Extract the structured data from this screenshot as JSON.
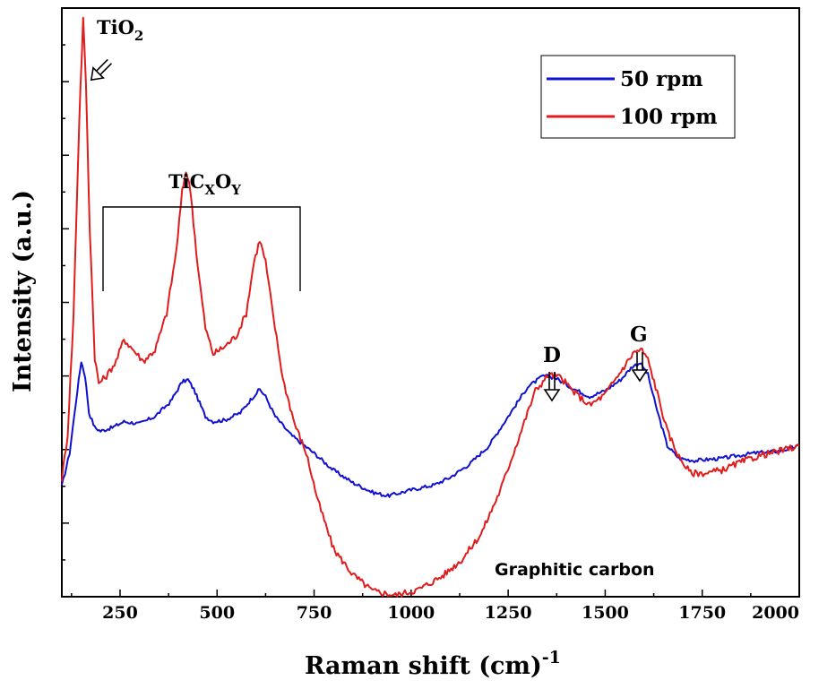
{
  "chart_data": {
    "type": "line",
    "title": "",
    "xlabel": "Raman shift (cm)",
    "xlabel_sup": "-1",
    "ylabel": "Intensity (a.u.)",
    "xlim": [
      100,
      2000
    ],
    "ylim": [
      0,
      8
    ],
    "xticks": [
      250,
      500,
      750,
      1000,
      1250,
      1500,
      1750,
      2000
    ],
    "y_tick_labels_shown": false,
    "grid": false,
    "legend_position": "top-right",
    "series": [
      {
        "name": "50 rpm",
        "color": "#1010d0",
        "points": [
          [
            100,
            1.5
          ],
          [
            120,
            1.95
          ],
          [
            140,
            2.8
          ],
          [
            150,
            3.2
          ],
          [
            160,
            3.0
          ],
          [
            170,
            2.5
          ],
          [
            185,
            2.3
          ],
          [
            200,
            2.25
          ],
          [
            230,
            2.3
          ],
          [
            260,
            2.38
          ],
          [
            300,
            2.35
          ],
          [
            340,
            2.45
          ],
          [
            380,
            2.65
          ],
          [
            410,
            2.92
          ],
          [
            425,
            2.95
          ],
          [
            440,
            2.82
          ],
          [
            470,
            2.45
          ],
          [
            490,
            2.38
          ],
          [
            520,
            2.4
          ],
          [
            560,
            2.5
          ],
          [
            590,
            2.7
          ],
          [
            610,
            2.82
          ],
          [
            625,
            2.72
          ],
          [
            650,
            2.45
          ],
          [
            690,
            2.2
          ],
          [
            750,
            1.95
          ],
          [
            800,
            1.72
          ],
          [
            850,
            1.55
          ],
          [
            900,
            1.42
          ],
          [
            940,
            1.37
          ],
          [
            1000,
            1.45
          ],
          [
            1060,
            1.52
          ],
          [
            1100,
            1.62
          ],
          [
            1150,
            1.8
          ],
          [
            1200,
            2.05
          ],
          [
            1250,
            2.45
          ],
          [
            1300,
            2.85
          ],
          [
            1340,
            3.0
          ],
          [
            1370,
            2.98
          ],
          [
            1410,
            2.85
          ],
          [
            1460,
            2.72
          ],
          [
            1500,
            2.8
          ],
          [
            1540,
            2.95
          ],
          [
            1570,
            3.13
          ],
          [
            1590,
            3.18
          ],
          [
            1610,
            3.02
          ],
          [
            1630,
            2.6
          ],
          [
            1660,
            2.05
          ],
          [
            1690,
            1.88
          ],
          [
            1730,
            1.85
          ],
          [
            1800,
            1.88
          ],
          [
            1880,
            1.95
          ],
          [
            1950,
            1.98
          ],
          [
            2000,
            2.05
          ]
        ]
      },
      {
        "name": "100 rpm",
        "color": "#e01c1c",
        "points": [
          [
            100,
            1.6
          ],
          [
            115,
            2.2
          ],
          [
            130,
            3.8
          ],
          [
            145,
            6.5
          ],
          [
            155,
            7.85
          ],
          [
            162,
            7.0
          ],
          [
            172,
            5.0
          ],
          [
            185,
            3.25
          ],
          [
            195,
            2.9
          ],
          [
            215,
            3.0
          ],
          [
            240,
            3.2
          ],
          [
            260,
            3.5
          ],
          [
            285,
            3.35
          ],
          [
            310,
            3.2
          ],
          [
            340,
            3.35
          ],
          [
            370,
            3.85
          ],
          [
            395,
            4.7
          ],
          [
            410,
            5.5
          ],
          [
            420,
            5.8
          ],
          [
            432,
            5.5
          ],
          [
            450,
            4.5
          ],
          [
            470,
            3.65
          ],
          [
            490,
            3.3
          ],
          [
            520,
            3.4
          ],
          [
            550,
            3.55
          ],
          [
            575,
            3.85
          ],
          [
            595,
            4.55
          ],
          [
            610,
            4.85
          ],
          [
            625,
            4.55
          ],
          [
            645,
            3.8
          ],
          [
            670,
            2.95
          ],
          [
            700,
            2.35
          ],
          [
            730,
            1.95
          ],
          [
            760,
            1.3
          ],
          [
            800,
            0.65
          ],
          [
            850,
            0.3
          ],
          [
            900,
            0.08
          ],
          [
            960,
            0.02
          ],
          [
            1020,
            0.1
          ],
          [
            1080,
            0.28
          ],
          [
            1130,
            0.5
          ],
          [
            1180,
            0.85
          ],
          [
            1230,
            1.45
          ],
          [
            1280,
            2.2
          ],
          [
            1320,
            2.8
          ],
          [
            1355,
            3.02
          ],
          [
            1385,
            2.98
          ],
          [
            1420,
            2.78
          ],
          [
            1460,
            2.6
          ],
          [
            1500,
            2.75
          ],
          [
            1545,
            3.1
          ],
          [
            1575,
            3.33
          ],
          [
            1595,
            3.35
          ],
          [
            1610,
            3.22
          ],
          [
            1630,
            2.85
          ],
          [
            1660,
            2.25
          ],
          [
            1690,
            1.9
          ],
          [
            1720,
            1.68
          ],
          [
            1760,
            1.68
          ],
          [
            1800,
            1.72
          ],
          [
            1850,
            1.83
          ],
          [
            1900,
            1.92
          ],
          [
            1950,
            1.98
          ],
          [
            2000,
            2.05
          ]
        ]
      }
    ],
    "annotations": {
      "tio2_base": "TiO",
      "tio2_sub": "2",
      "ticxoy_base": "TiC",
      "ticxoy_sub1": "X",
      "ticxoy_mid": "O",
      "ticxoy_sub2": "Y",
      "d_label": "D",
      "g_label": "G",
      "graphitic": "Graphitic carbon"
    }
  }
}
